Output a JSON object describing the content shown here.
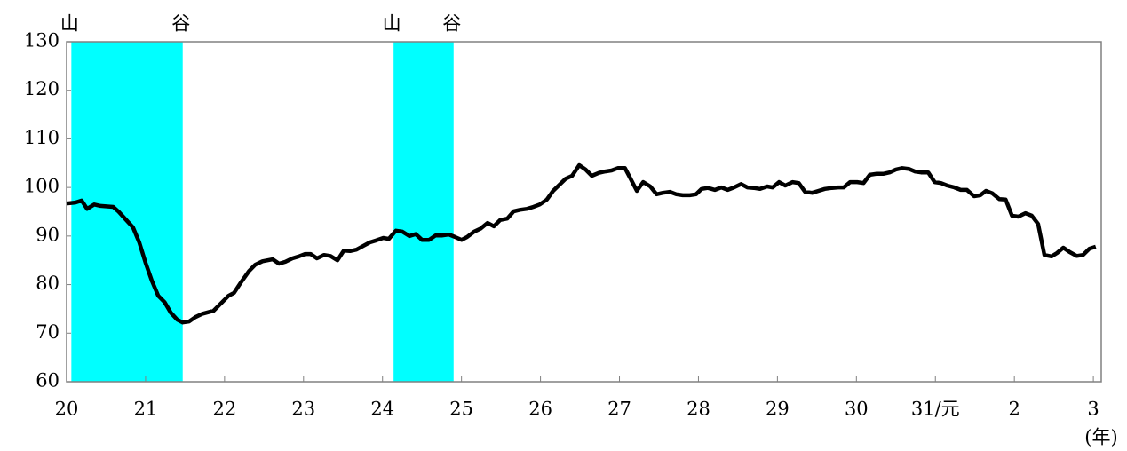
{
  "chart_data": {
    "type": "line",
    "color": "#000000",
    "band_color": "#00ffff",
    "x_label": "(年)",
    "xlim": [
      2008,
      2021.1
    ],
    "xticks": [
      {
        "value": 2008,
        "label": "20"
      },
      {
        "value": 2009,
        "label": "21"
      },
      {
        "value": 2010,
        "label": "22"
      },
      {
        "value": 2011,
        "label": "23"
      },
      {
        "value": 2012,
        "label": "24"
      },
      {
        "value": 2013,
        "label": "25"
      },
      {
        "value": 2014,
        "label": "26"
      },
      {
        "value": 2015,
        "label": "27"
      },
      {
        "value": 2016,
        "label": "28"
      },
      {
        "value": 2017,
        "label": "29"
      },
      {
        "value": 2018,
        "label": "30"
      },
      {
        "value": 2019,
        "label": "31/元"
      },
      {
        "value": 2020,
        "label": "2"
      },
      {
        "value": 2021,
        "label": "3"
      }
    ],
    "ylim": [
      60,
      130
    ],
    "yticks": [
      60,
      70,
      80,
      90,
      100,
      110,
      120,
      130
    ],
    "bands": [
      {
        "start": 2008.06,
        "end": 2009.47,
        "peak_label": "山",
        "trough_label": "谷"
      },
      {
        "start": 2012.14,
        "end": 2012.9,
        "peak_label": "山",
        "trough_label": "谷"
      }
    ],
    "x": [
      2008,
      2008.11,
      2008.19,
      2008.26,
      2008.35,
      2008.43,
      2008.59,
      2008.66,
      2008.75,
      2008.84,
      2008.92,
      2009,
      2009.08,
      2009.16,
      2009.24,
      2009.32,
      2009.4,
      2009.47,
      2009.55,
      2009.63,
      2009.72,
      2009.86,
      2009.97,
      2010.05,
      2010.12,
      2010.21,
      2010.31,
      2010.39,
      2010.48,
      2010.61,
      2010.69,
      2010.77,
      2010.86,
      2010.94,
      2011.02,
      2011.09,
      2011.17,
      2011.26,
      2011.34,
      2011.43,
      2011.51,
      2011.59,
      2011.67,
      2011.76,
      2011.84,
      2011.92,
      2012.01,
      2012.08,
      2012.17,
      2012.25,
      2012.34,
      2012.42,
      2012.5,
      2012.59,
      2012.67,
      2012.75,
      2012.84,
      2012.92,
      2013,
      2013.07,
      2013.16,
      2013.24,
      2013.33,
      2013.41,
      2013.49,
      2013.58,
      2013.66,
      2013.74,
      2013.83,
      2013.91,
      2013.99,
      2014.08,
      2014.16,
      2014.23,
      2014.32,
      2014.4,
      2014.49,
      2014.57,
      2014.65,
      2014.74,
      2014.82,
      2014.9,
      2014.98,
      2015.07,
      2015.14,
      2015.22,
      2015.3,
      2015.39,
      2015.47,
      2015.55,
      2015.64,
      2015.72,
      2015.8,
      2015.89,
      2015.97,
      2016.04,
      2016.12,
      2016.21,
      2016.29,
      2016.37,
      2016.45,
      2016.54,
      2016.62,
      2016.7,
      2016.78,
      2016.87,
      2016.94,
      2017.02,
      2017.1,
      2017.19,
      2017.27,
      2017.35,
      2017.44,
      2017.52,
      2017.6,
      2017.69,
      2017.77,
      2017.84,
      2017.92,
      2018.01,
      2018.09,
      2018.17,
      2018.25,
      2018.34,
      2018.42,
      2018.5,
      2018.58,
      2018.67,
      2018.74,
      2018.82,
      2018.91,
      2018.99,
      2019.07,
      2019.15,
      2019.24,
      2019.32,
      2019.4,
      2019.49,
      2019.57,
      2019.64,
      2019.72,
      2019.81,
      2019.89,
      2019.97,
      2020.05,
      2020.14,
      2020.22,
      2020.3,
      2020.38,
      2020.47,
      2020.54,
      2020.62,
      2020.7,
      2020.79,
      2020.87,
      2020.95,
      2021.03
    ],
    "values": [
      96.7,
      96.9,
      97.3,
      95.6,
      96.5,
      96.2,
      96,
      95,
      93.4,
      91.8,
      88.7,
      84.5,
      80.8,
      77.7,
      76.4,
      74.2,
      72.8,
      72.2,
      72.4,
      73.3,
      74,
      74.6,
      76.4,
      77.7,
      78.3,
      80.5,
      82.8,
      84.1,
      84.8,
      85.2,
      84.3,
      84.7,
      85.4,
      85.8,
      86.3,
      86.3,
      85.4,
      86.1,
      85.9,
      85,
      87,
      86.9,
      87.2,
      88,
      88.7,
      89.1,
      89.6,
      89.4,
      91.1,
      90.9,
      90,
      90.4,
      89.2,
      89.2,
      90.1,
      90.1,
      90.3,
      89.8,
      89.2,
      89.8,
      90.9,
      91.5,
      92.7,
      92,
      93.3,
      93.6,
      95.1,
      95.4,
      95.6,
      96,
      96.5,
      97.5,
      99.3,
      100.4,
      101.8,
      102.4,
      104.6,
      103.7,
      102.4,
      103,
      103.3,
      103.5,
      104,
      104,
      101.8,
      99.3,
      101.1,
      100.2,
      98.6,
      98.9,
      99.1,
      98.6,
      98.4,
      98.4,
      98.6,
      99.7,
      99.9,
      99.5,
      100,
      99.5,
      100,
      100.7,
      100,
      99.9,
      99.7,
      100.2,
      100,
      101.1,
      100.4,
      101.1,
      100.9,
      99.1,
      98.9,
      99.3,
      99.7,
      99.9,
      100,
      100,
      101.1,
      101.1,
      100.9,
      102.6,
      102.8,
      102.8,
      103.1,
      103.7,
      104,
      103.8,
      103.3,
      103.1,
      103.1,
      101.1,
      100.9,
      100.4,
      100,
      99.5,
      99.5,
      98.2,
      98.4,
      99.3,
      98.8,
      97.6,
      97.5,
      94.2,
      94,
      94.7,
      94.2,
      92.5,
      86.1,
      85.8,
      86.5,
      87.6,
      86.7,
      85.9,
      86.1,
      87.4,
      87.8
    ]
  }
}
